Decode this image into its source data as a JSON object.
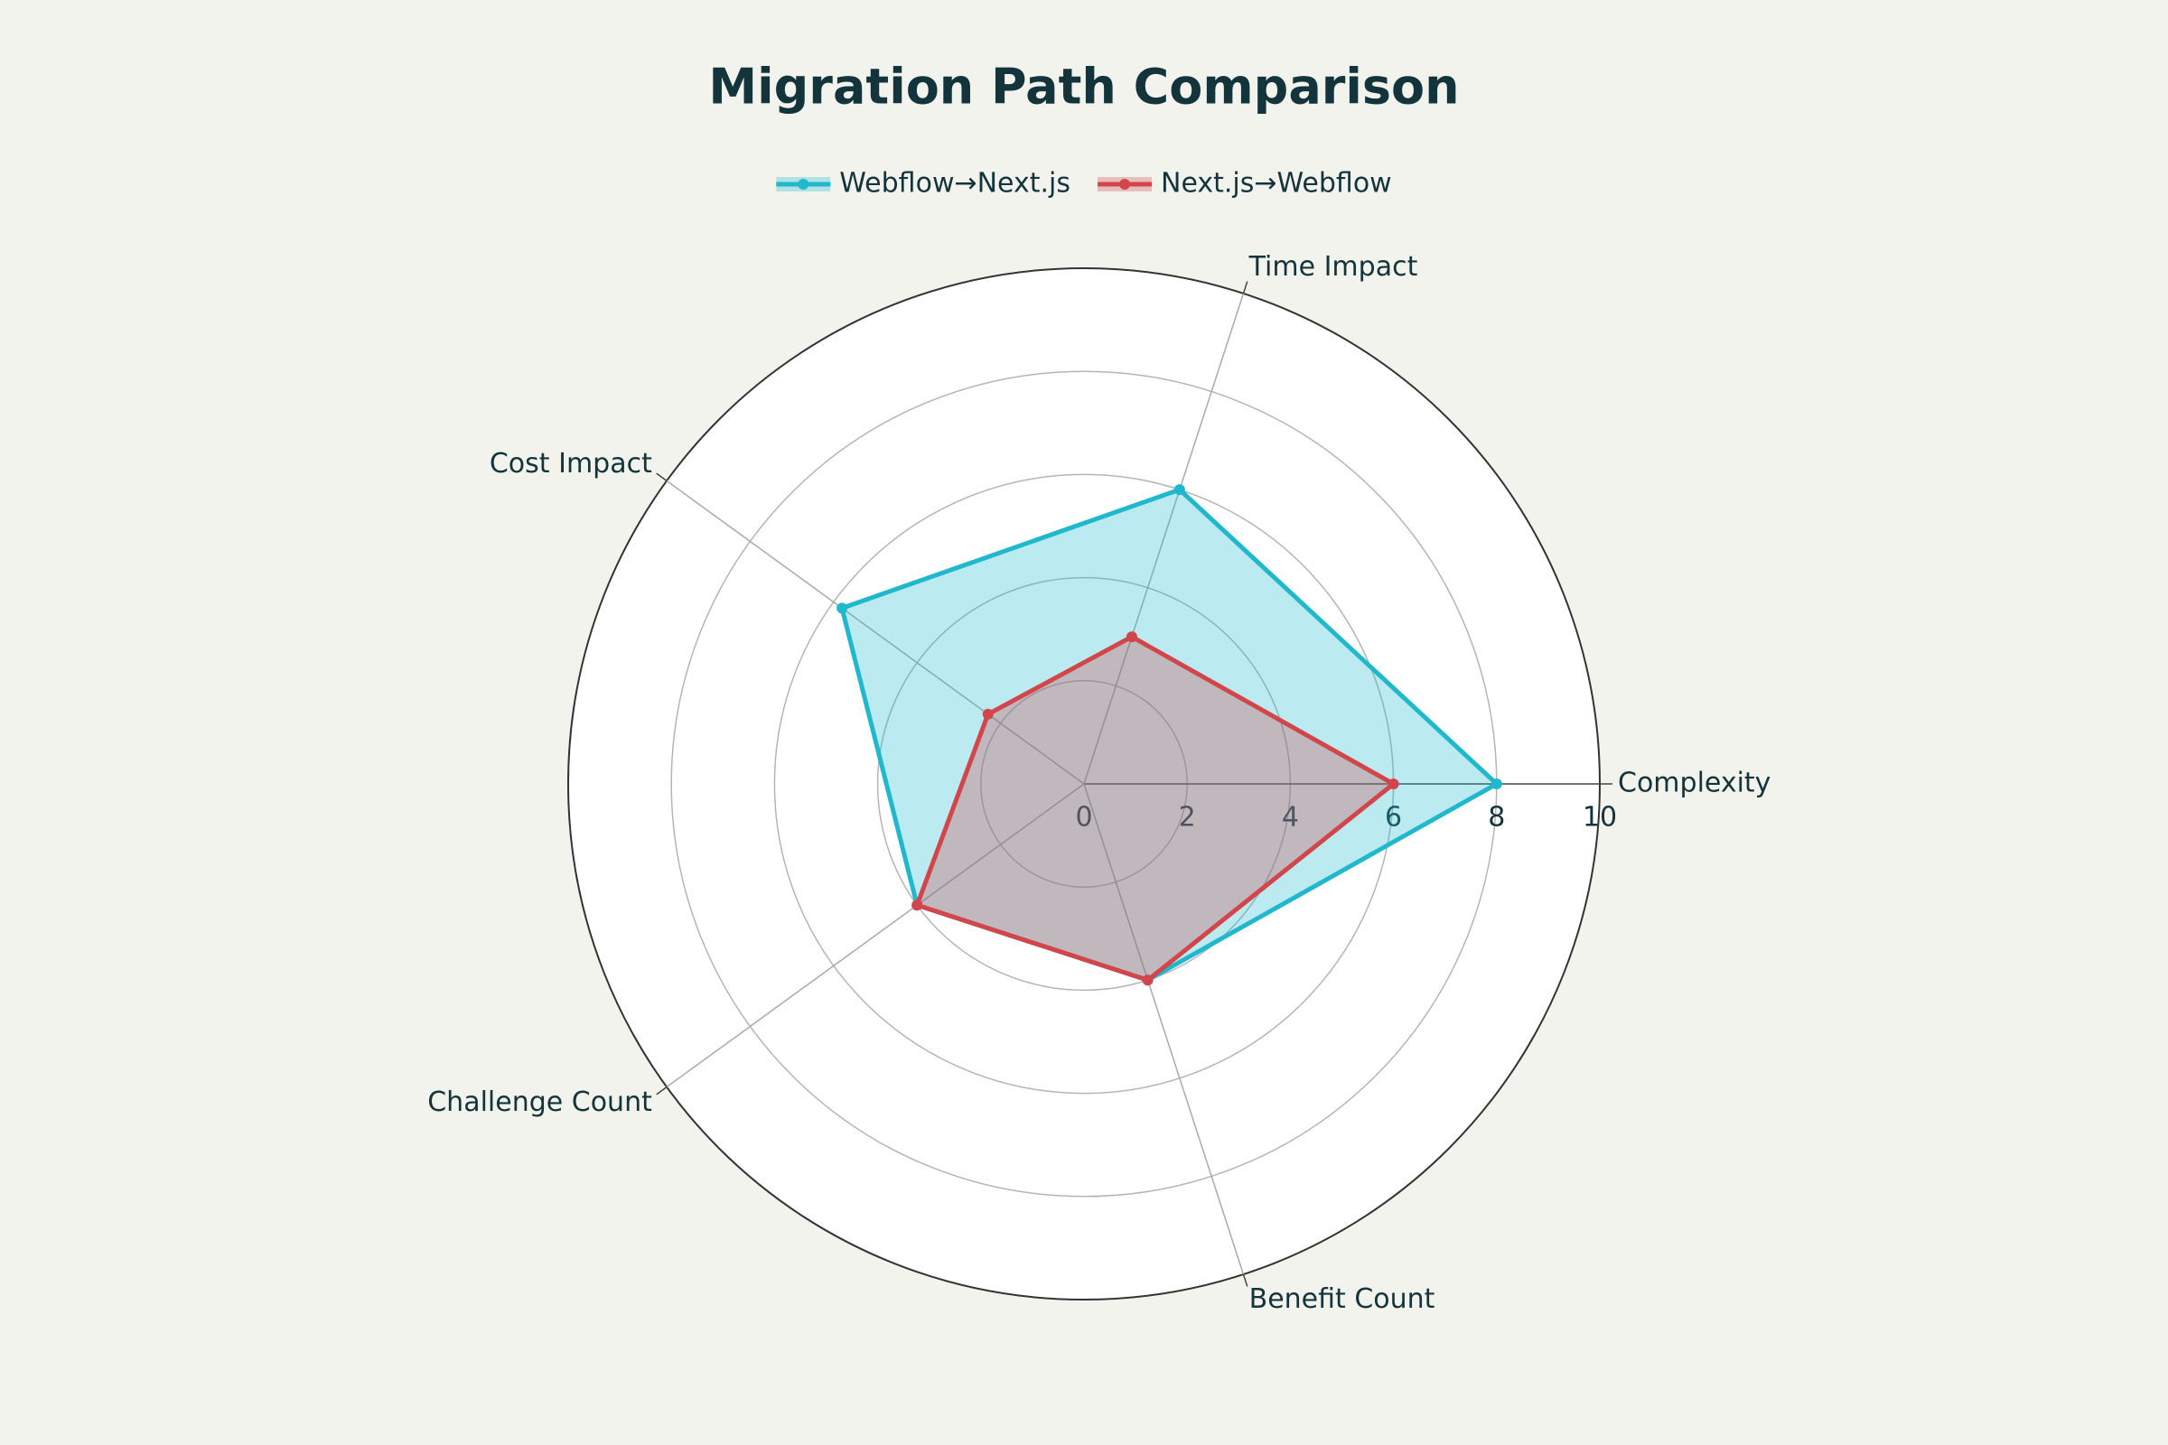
{
  "chart_data": {
    "type": "radar",
    "title": "Migration Path Comparison",
    "categories": [
      "Complexity",
      "Time Impact",
      "Cost Impact",
      "Challenge Count",
      "Benefit Count"
    ],
    "series": [
      {
        "name": "Webflow→Next.js",
        "color": "#1fb8cd",
        "values": [
          8,
          6,
          5.8,
          4,
          4
        ]
      },
      {
        "name": "Next.js→Webflow",
        "color": "#d2464b",
        "values": [
          6,
          3,
          2.3,
          4,
          4
        ]
      }
    ],
    "rlim": [
      0,
      10
    ],
    "rticks": [
      0,
      2,
      4,
      6,
      8,
      10
    ],
    "grid": true,
    "legend": "top"
  }
}
